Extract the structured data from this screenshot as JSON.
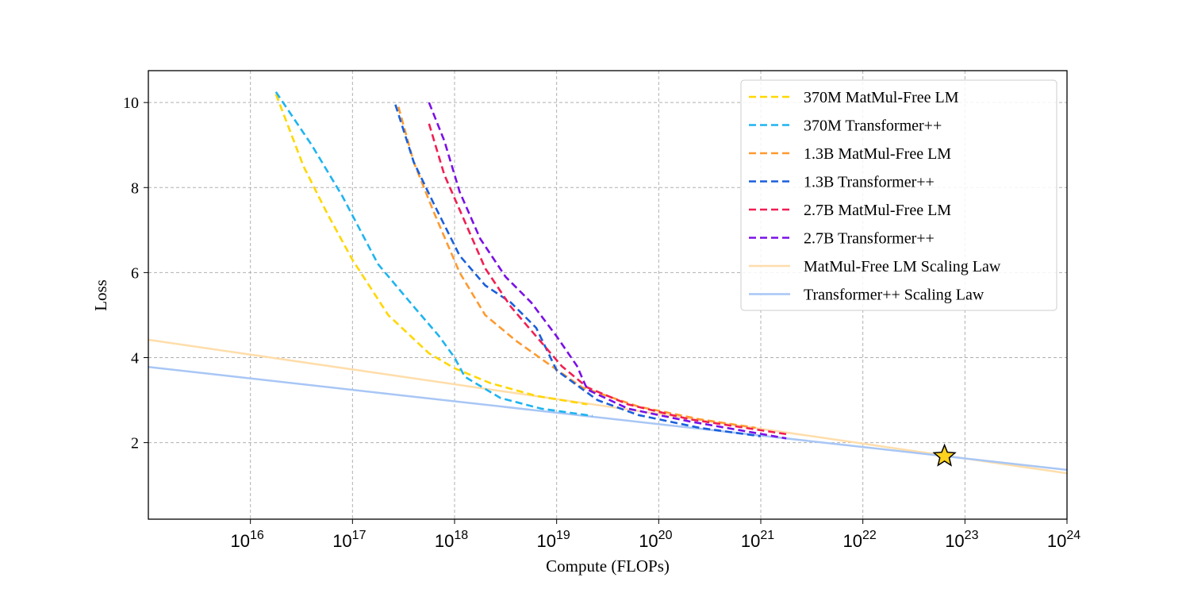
{
  "chart_data": {
    "type": "line",
    "xlabel": "Compute (FLOPs)",
    "ylabel": "Loss",
    "xscale": "log",
    "xlim_exp": [
      15,
      24
    ],
    "ylim": [
      0.2,
      10.75
    ],
    "x_ticks": [
      {
        "base": "10",
        "exp": "16",
        "value_exp": 16
      },
      {
        "base": "10",
        "exp": "17",
        "value_exp": 17
      },
      {
        "base": "10",
        "exp": "18",
        "value_exp": 18
      },
      {
        "base": "10",
        "exp": "19",
        "value_exp": 19
      },
      {
        "base": "10",
        "exp": "20",
        "value_exp": 20
      },
      {
        "base": "10",
        "exp": "21",
        "value_exp": 21
      },
      {
        "base": "10",
        "exp": "22",
        "value_exp": 22
      },
      {
        "base": "10",
        "exp": "23",
        "value_exp": 23
      },
      {
        "base": "10",
        "exp": "24",
        "value_exp": 24
      }
    ],
    "y_ticks": [
      {
        "label": "2",
        "value": 2
      },
      {
        "label": "4",
        "value": 4
      },
      {
        "label": "6",
        "value": 6
      },
      {
        "label": "8",
        "value": 8
      },
      {
        "label": "10",
        "value": 10
      }
    ],
    "grid": true,
    "legend_position": "top-right",
    "series": [
      {
        "name": "370M MatMul-Free LM",
        "color": "#FFD700",
        "style": "dashed",
        "x_log10": [
          16.25,
          16.52,
          16.75,
          17.0,
          17.35,
          17.75,
          18.0,
          18.35,
          18.8,
          19.3
        ],
        "y": [
          10.2,
          8.5,
          7.4,
          6.3,
          5.0,
          4.1,
          3.75,
          3.4,
          3.1,
          2.9
        ]
      },
      {
        "name": "370M Transformer++",
        "color": "#1EB4F0",
        "style": "dashed",
        "x_log10": [
          16.25,
          16.6,
          16.9,
          17.25,
          17.6,
          17.85,
          18.0,
          18.1,
          18.45,
          18.85,
          19.35
        ],
        "y": [
          10.25,
          9.0,
          7.8,
          6.2,
          5.2,
          4.5,
          4.0,
          3.55,
          3.05,
          2.8,
          2.63
        ]
      },
      {
        "name": "1.3B MatMul-Free LM",
        "color": "#FF9A30",
        "style": "dashed",
        "x_log10": [
          17.45,
          17.6,
          17.8,
          18.05,
          18.3,
          18.6,
          18.95,
          19.25,
          19.8,
          20.4,
          20.95
        ],
        "y": [
          9.9,
          8.6,
          7.4,
          6.0,
          5.0,
          4.4,
          3.8,
          3.3,
          2.85,
          2.55,
          2.35
        ]
      },
      {
        "name": "1.3B Transformer++",
        "color": "#1A5FDC",
        "style": "dashed",
        "x_log10": [
          17.42,
          17.6,
          17.8,
          18.05,
          18.3,
          18.55,
          18.8,
          19.0,
          19.4,
          19.8,
          20.4,
          21.0
        ],
        "y": [
          9.95,
          8.6,
          7.6,
          6.4,
          5.7,
          5.3,
          4.7,
          3.7,
          3.0,
          2.65,
          2.35,
          2.15
        ]
      },
      {
        "name": "2.7B MatMul-Free LM",
        "color": "#F21E52",
        "style": "dashed",
        "x_log10": [
          17.75,
          17.9,
          18.1,
          18.3,
          18.55,
          18.8,
          19.05,
          19.3,
          19.7,
          20.3,
          21.25
        ],
        "y": [
          9.5,
          8.3,
          7.2,
          6.1,
          5.2,
          4.5,
          3.8,
          3.3,
          2.9,
          2.55,
          2.2
        ]
      },
      {
        "name": "2.7B Transformer++",
        "color": "#7A10E6",
        "style": "dashed",
        "x_log10": [
          17.75,
          17.9,
          18.05,
          18.25,
          18.5,
          18.75,
          19.0,
          19.2,
          19.3,
          19.7,
          20.3,
          21.25
        ],
        "y": [
          10.0,
          9.1,
          7.9,
          6.8,
          5.9,
          5.3,
          4.5,
          3.8,
          3.25,
          2.8,
          2.5,
          2.1
        ]
      },
      {
        "name": "MatMul-Free LM Scaling Law",
        "color": "#FFDDAA",
        "style": "solid",
        "x_log10": [
          15.0,
          24.0
        ],
        "y": [
          4.42,
          1.28
        ]
      },
      {
        "name": "Transformer++ Scaling Law",
        "color": "#A8C6F5",
        "style": "solid",
        "x_log10": [
          15.0,
          24.0
        ],
        "y": [
          3.78,
          1.36
        ]
      }
    ],
    "marker": {
      "shape": "star",
      "color": "#FFD21E",
      "x_log10": 22.8,
      "y": 1.68
    }
  }
}
